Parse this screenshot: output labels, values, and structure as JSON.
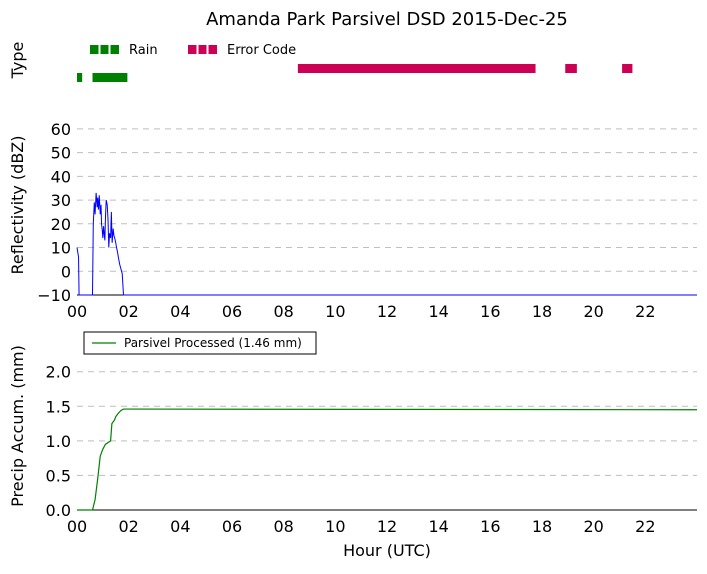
{
  "chart_data": [
    {
      "type": "timeline",
      "title": "Amanda Park Parsivel DSD 2015-Dec-25",
      "ylabel": "Type",
      "legend": [
        {
          "name": "Rain",
          "color": "#008000"
        },
        {
          "name": "Error Code",
          "color": "#cc0055"
        }
      ],
      "rain_periods": [
        [
          0.0,
          0.2
        ],
        [
          0.6,
          1.95
        ]
      ],
      "error_periods": [
        [
          8.55,
          17.75
        ],
        [
          18.9,
          19.35
        ],
        [
          21.1,
          21.5
        ]
      ],
      "xlim": [
        0,
        24
      ],
      "legend_position": "top-left"
    },
    {
      "type": "line",
      "ylabel": "Reflectivity (dBZ)",
      "xlim": [
        0,
        24
      ],
      "ylim": [
        -10,
        65
      ],
      "yticks": [
        "60",
        "50",
        "40",
        "30",
        "20",
        "10",
        "0",
        "−10"
      ],
      "xticks": [
        "00",
        "02",
        "04",
        "06",
        "08",
        "10",
        "12",
        "14",
        "16",
        "18",
        "20",
        "22"
      ],
      "grid": true,
      "series": [
        {
          "color": "#0000ff",
          "x": [
            0.0,
            0.06,
            0.08,
            0.6,
            0.63,
            0.67,
            0.7,
            0.74,
            0.78,
            0.8,
            0.83,
            0.86,
            0.9,
            0.93,
            0.95,
            0.98,
            1.0,
            1.03,
            1.06,
            1.08,
            1.1,
            1.13,
            1.17,
            1.2,
            1.23,
            1.26,
            1.3,
            1.33,
            1.36,
            1.4,
            1.43,
            1.46,
            1.5,
            1.53,
            1.57,
            1.6,
            1.65,
            1.7,
            1.75,
            1.8,
            1.85,
            1.9,
            24.0
          ],
          "y": [
            10,
            6,
            -10,
            -10,
            20,
            29,
            24,
            33,
            27,
            31,
            26,
            32,
            24,
            28,
            20,
            17,
            14,
            19,
            15,
            13,
            22,
            30,
            28,
            22,
            10,
            16,
            14,
            25,
            12,
            18,
            15,
            14,
            12,
            10,
            8,
            6,
            3,
            1,
            -1,
            -10,
            -10,
            -10,
            -10
          ]
        }
      ]
    },
    {
      "type": "line",
      "ylabel": "Precip Accum. (mm)",
      "xlabel": "Hour (UTC)",
      "xlim": [
        0,
        24
      ],
      "ylim": [
        0,
        2.3
      ],
      "yticks": [
        "0.0",
        "0.5",
        "1.0",
        "1.5",
        "2.0"
      ],
      "xticks": [
        "00",
        "02",
        "04",
        "06",
        "08",
        "10",
        "12",
        "14",
        "16",
        "18",
        "20",
        "22"
      ],
      "grid": true,
      "legend_position": "top-left",
      "series": [
        {
          "name": "Parsivel Processed (1.46 mm)",
          "color": "#008000",
          "x": [
            0.0,
            0.6,
            0.7,
            0.8,
            0.9,
            1.0,
            1.1,
            1.3,
            1.35,
            1.45,
            1.5,
            1.6,
            1.7,
            1.8,
            1.9,
            2.0,
            24.0
          ],
          "y": [
            0.0,
            0.0,
            0.15,
            0.45,
            0.78,
            0.88,
            0.95,
            1.0,
            1.25,
            1.3,
            1.35,
            1.4,
            1.44,
            1.46,
            1.46,
            1.46,
            1.45
          ]
        }
      ]
    }
  ]
}
